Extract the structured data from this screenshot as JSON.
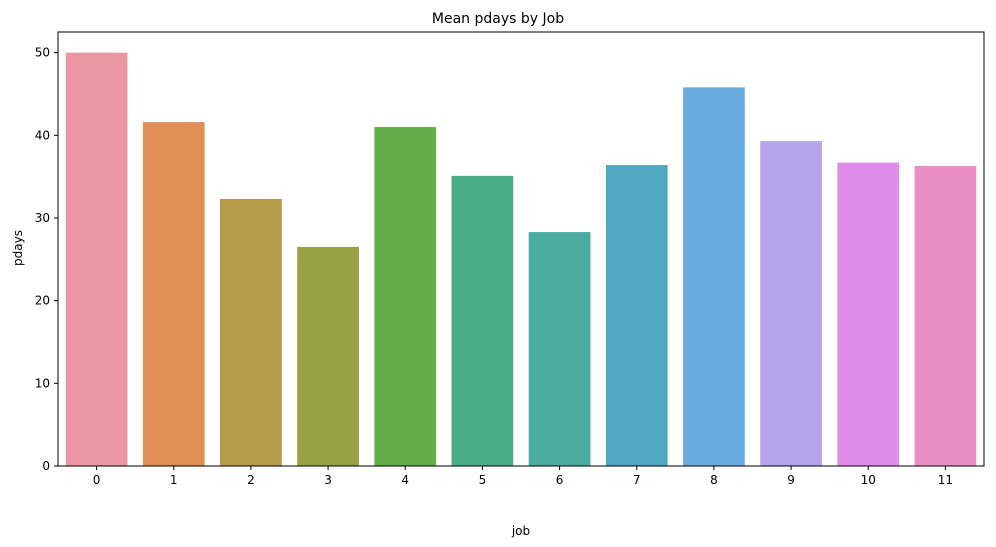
{
  "chart_data": {
    "type": "bar",
    "title": "Mean pdays by Job",
    "xlabel": "job",
    "ylabel": "pdays",
    "categories": [
      "0",
      "1",
      "2",
      "3",
      "4",
      "5",
      "6",
      "7",
      "8",
      "9",
      "10",
      "11"
    ],
    "values": [
      50.0,
      41.6,
      32.3,
      26.5,
      41.0,
      35.1,
      28.3,
      36.4,
      45.8,
      39.3,
      36.7,
      36.3
    ],
    "colors": [
      "#ea96a3",
      "#e18f54",
      "#b59a48",
      "#98a243",
      "#62ae48",
      "#4aae89",
      "#4cac9f",
      "#4fa8c0",
      "#69abe1",
      "#b5a4ec",
      "#e08ce9",
      "#e88fc4"
    ],
    "yticks": [
      0,
      10,
      20,
      30,
      40,
      50
    ],
    "ylim": [
      0,
      52.5
    ],
    "grid": false,
    "legend": "none"
  }
}
